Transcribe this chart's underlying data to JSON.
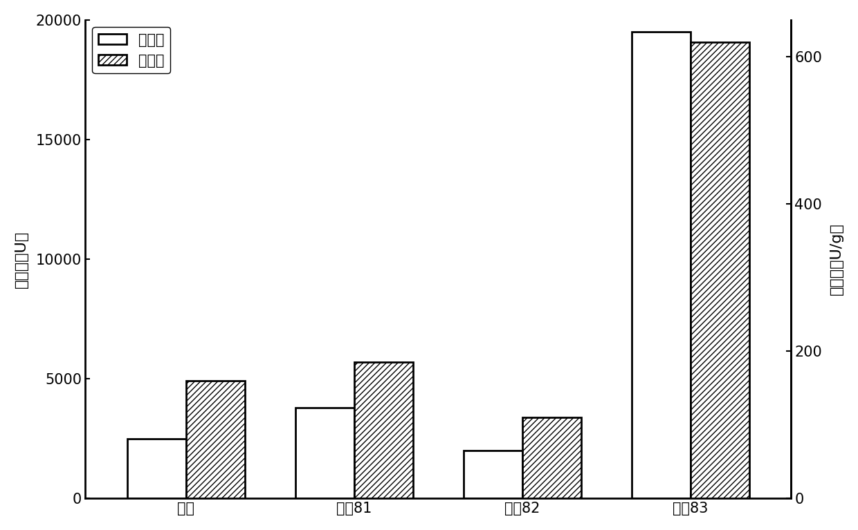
{
  "categories": [
    "对照",
    "处琖81",
    "处琖82",
    "处琖83"
  ],
  "total_enzyme_activity": [
    2500,
    3800,
    2000,
    19500
  ],
  "specific_enzyme_activity": [
    160,
    185,
    110,
    620
  ],
  "ylabel_left": "总酶活（U）",
  "ylabel_right": "比酶活（U/g）",
  "ylim_left": [
    0,
    20000
  ],
  "ylim_right": [
    0,
    650
  ],
  "yticks_left": [
    0,
    5000,
    10000,
    15000,
    20000
  ],
  "yticks_right": [
    0,
    200,
    400,
    600
  ],
  "legend_labels": [
    "总酶活",
    "比酶活"
  ],
  "bar_width": 0.35,
  "bar_color_solid": "#ffffff",
  "bar_color_hatch": "#ffffff",
  "bar_edge_color": "#000000",
  "hatch_pattern": "////",
  "label_fontsize": 16,
  "tick_fontsize": 15,
  "legend_fontsize": 15,
  "background_color": "#ffffff"
}
